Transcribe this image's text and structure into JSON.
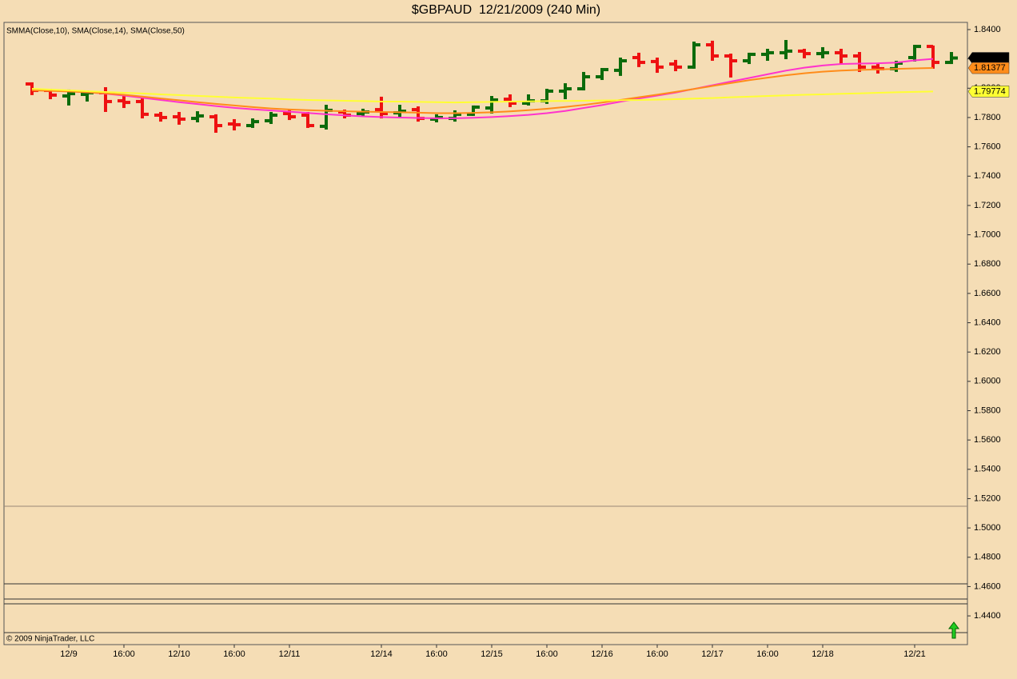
{
  "chart_data": {
    "type": "ohlc",
    "title": "$GBPAUD  12/21/2009 (240 Min)",
    "indicator_legend": "SMMA(Close,10), SMA(Close,14), SMA(Close,50)",
    "copyright": "© 2009 NinjaTrader, LLC",
    "categories": [
      null,
      null,
      "12/9",
      null,
      null,
      "16:00",
      null,
      null,
      "12/10",
      null,
      null,
      "16:00",
      null,
      null,
      "12/11",
      null,
      null,
      null,
      null,
      "12/14",
      null,
      null,
      "16:00",
      null,
      null,
      "12/15",
      null,
      null,
      "16:00",
      null,
      null,
      "12/16",
      null,
      null,
      "16:00",
      null,
      null,
      "12/17",
      null,
      null,
      "16:00",
      null,
      null,
      "12/18",
      null,
      null,
      null,
      null,
      "12/21",
      null,
      null
    ],
    "open": [
      1.8029,
      1.7985,
      1.7947,
      1.7958,
      1.7969,
      1.7914,
      1.7909,
      1.7816,
      1.7805,
      1.7794,
      1.7805,
      1.7756,
      1.7745,
      1.7778,
      1.7827,
      1.7816,
      1.774,
      1.7838,
      1.7827,
      1.7854,
      1.7832,
      1.7854,
      1.7789,
      1.7794,
      1.7822,
      1.7865,
      1.7925,
      1.7898,
      1.7914,
      1.798,
      1.7996,
      1.8078,
      1.8122,
      1.8209,
      1.8182,
      1.8165,
      1.8144,
      1.8296,
      1.822,
      1.8187,
      1.8231,
      1.8242,
      1.8253,
      1.8236,
      1.8242,
      1.822,
      1.8144,
      1.8133,
      1.8209,
      1.8285,
      1.8176
    ],
    "high": [
      1.804,
      1.7996,
      1.7991,
      1.7985,
      1.8007,
      1.7953,
      1.7936,
      1.7838,
      1.7838,
      1.7843,
      1.7822,
      1.7789,
      1.7794,
      1.7838,
      1.7854,
      1.7838,
      1.7887,
      1.7854,
      1.786,
      1.7942,
      1.7887,
      1.7876,
      1.7822,
      1.7849,
      1.7882,
      1.7947,
      1.7958,
      1.7958,
      1.7996,
      1.8034,
      1.8111,
      1.8138,
      1.8209,
      1.8242,
      1.8209,
      1.8193,
      1.8318,
      1.8324,
      1.8236,
      1.8242,
      1.8269,
      1.8329,
      1.8269,
      1.828,
      1.8269,
      1.8247,
      1.8165,
      1.8187,
      1.8296,
      1.8291,
      1.8247
    ],
    "low": [
      1.7953,
      1.7925,
      1.7882,
      1.7909,
      1.7838,
      1.7865,
      1.7794,
      1.7772,
      1.7751,
      1.7767,
      1.7696,
      1.7712,
      1.7729,
      1.7756,
      1.7783,
      1.7729,
      1.7718,
      1.7794,
      1.7811,
      1.7794,
      1.78,
      1.7772,
      1.7767,
      1.7772,
      1.7811,
      1.7827,
      1.7871,
      1.7882,
      1.7893,
      1.7925,
      1.7985,
      1.8056,
      1.8084,
      1.8144,
      1.8105,
      1.8116,
      1.8133,
      1.8187,
      1.8073,
      1.8165,
      1.8187,
      1.8198,
      1.8204,
      1.8204,
      1.8165,
      1.8111,
      1.81,
      1.8111,
      1.8182,
      1.8133,
      1.8165
    ],
    "close": [
      1.7985,
      1.7953,
      1.7963,
      1.7969,
      1.7909,
      1.7903,
      1.7822,
      1.78,
      1.7789,
      1.7811,
      1.7745,
      1.7751,
      1.7772,
      1.7816,
      1.7805,
      1.7745,
      1.7849,
      1.7816,
      1.7838,
      1.7827,
      1.7843,
      1.7794,
      1.78,
      1.7822,
      1.7871,
      1.792,
      1.7898,
      1.7914,
      1.798,
      1.7996,
      1.8078,
      1.8127,
      1.8187,
      1.8176,
      1.8144,
      1.8144,
      1.8296,
      1.822,
      1.8187,
      1.8231,
      1.8242,
      1.8253,
      1.8236,
      1.8242,
      1.822,
      1.8144,
      1.8133,
      1.8171,
      1.8285,
      1.8176,
      1.8206
    ],
    "up_color": "#0b6b0b",
    "down_color": "#ee1111",
    "overlays": [
      {
        "color": "#ff33cc",
        "values": [
          1.7991,
          1.7985,
          1.7979,
          1.7972,
          1.7963,
          1.795,
          1.7935,
          1.792,
          1.7905,
          1.7892,
          1.7878,
          1.7866,
          1.7856,
          1.7848,
          1.784,
          1.7831,
          1.7822,
          1.7815,
          1.7808,
          1.7803,
          1.78,
          1.7797,
          1.7795,
          1.7795,
          1.7798,
          1.7803,
          1.781,
          1.7818,
          1.783,
          1.7845,
          1.7865,
          1.7885,
          1.7908,
          1.793,
          1.795,
          1.797,
          1.7995,
          1.802,
          1.8045,
          1.807,
          1.8095,
          1.812,
          1.814,
          1.8155,
          1.8165,
          1.8168,
          1.817,
          1.8175,
          1.819,
          1.82,
          null
        ]
      },
      {
        "color": "#ff8c1a",
        "values": [
          1.7985,
          1.7982,
          1.7978,
          1.7972,
          1.7965,
          1.7955,
          1.7943,
          1.793,
          1.7918,
          1.7905,
          1.7893,
          1.7882,
          1.7871,
          1.7862,
          1.7855,
          1.785,
          1.7846,
          1.7843,
          1.784,
          1.7838,
          1.7836,
          1.7833,
          1.783,
          1.783,
          1.7832,
          1.7836,
          1.7842,
          1.785,
          1.786,
          1.7872,
          1.7886,
          1.7902,
          1.792,
          1.7938,
          1.7956,
          1.7975,
          1.7995,
          1.8015,
          1.8035,
          1.8055,
          1.8072,
          1.8088,
          1.8102,
          1.8113,
          1.812,
          1.8125,
          1.8128,
          1.8132,
          1.8135,
          1.81377,
          null
        ]
      },
      {
        "color": "#ffff33",
        "values": [
          1.7996,
          1.7991,
          1.7985,
          1.798,
          1.7974,
          1.7969,
          1.7964,
          1.7958,
          1.7953,
          1.7948,
          1.7942,
          1.7937,
          1.7933,
          1.7929,
          1.7924,
          1.792,
          1.7917,
          1.7914,
          1.7912,
          1.7909,
          1.7909,
          1.7907,
          1.7905,
          1.7903,
          1.7905,
          1.7907,
          1.7909,
          1.791,
          1.7912,
          1.7913,
          1.7914,
          1.7916,
          1.7918,
          1.792,
          1.7922,
          1.7925,
          1.7929,
          1.7933,
          1.7938,
          1.7942,
          1.7947,
          1.7951,
          1.7955,
          1.7958,
          1.7962,
          1.7965,
          1.7969,
          1.7972,
          1.7975,
          1.79774,
          null
        ]
      }
    ],
    "price_tags": [
      {
        "value": 1.8206,
        "color": "#000000",
        "text_color": "#ffffff"
      },
      {
        "value": 1.81377,
        "color": "#ff8c1a",
        "text_color": "#000000"
      },
      {
        "value": 1.79774,
        "color": "#ffff33",
        "text_color": "#000000"
      }
    ],
    "ylim": [
      1.4204,
      1.8449
    ],
    "yticks": [
      {
        "value": 1.84,
        "label": "1.8400"
      },
      {
        "value": 1.82,
        "label": "1.8200"
      },
      {
        "value": 1.8,
        "label": "1.8000"
      },
      {
        "value": 1.78,
        "label": "1.7800"
      },
      {
        "value": 1.76,
        "label": "1.7600"
      },
      {
        "value": 1.74,
        "label": "1.7400"
      },
      {
        "value": 1.72,
        "label": "1.7200"
      },
      {
        "value": 1.7,
        "label": "1.7000"
      },
      {
        "value": 1.68,
        "label": "1.6800"
      },
      {
        "value": 1.66,
        "label": "1.6600"
      },
      {
        "value": 1.64,
        "label": "1.6400"
      },
      {
        "value": 1.62,
        "label": "1.6200"
      },
      {
        "value": 1.6,
        "label": "1.6000"
      },
      {
        "value": 1.58,
        "label": "1.5800"
      },
      {
        "value": 1.56,
        "label": "1.5600"
      },
      {
        "value": 1.54,
        "label": "1.5400"
      },
      {
        "value": 1.52,
        "label": "1.5200"
      },
      {
        "value": 1.5,
        "label": "1.5000"
      },
      {
        "value": 1.48,
        "label": "1.4800"
      },
      {
        "value": 1.46,
        "label": "1.4600"
      },
      {
        "value": 1.44,
        "label": "1.4400"
      }
    ]
  }
}
